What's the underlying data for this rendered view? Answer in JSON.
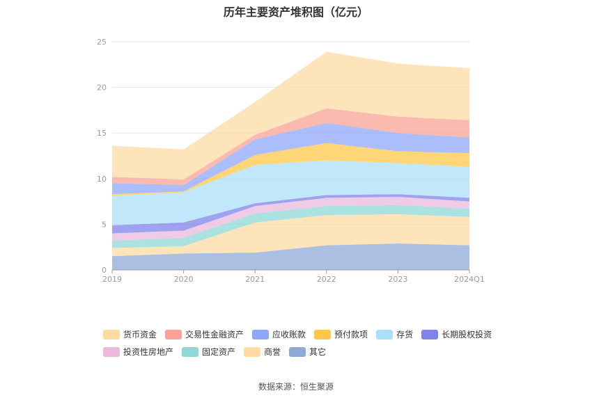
{
  "title": "历年主要资产堆积图（亿元）",
  "source": "数据来源：恒生聚源",
  "chart_data": {
    "type": "area",
    "stacked": true,
    "categories": [
      "2019",
      "2020",
      "2021",
      "2022",
      "2023",
      "2024Q1"
    ],
    "ylim": [
      0,
      25
    ],
    "yticks": [
      0,
      5,
      10,
      15,
      20,
      25
    ],
    "grid": true,
    "legend_position": "bottom",
    "series": [
      {
        "name": "其它",
        "color": "#8fa9d8",
        "values": [
          1.5,
          1.8,
          1.9,
          2.7,
          2.9,
          2.7
        ]
      },
      {
        "name": "商誉",
        "color": "#fddba3",
        "values": [
          0.9,
          0.8,
          3.3,
          3.3,
          3.2,
          3.1
        ]
      },
      {
        "name": "固定资产",
        "color": "#8ed8d8",
        "values": [
          0.8,
          0.9,
          1.0,
          1.0,
          1.0,
          0.9
        ]
      },
      {
        "name": "投资性房地产",
        "color": "#eab9dc",
        "values": [
          0.8,
          0.8,
          0.8,
          0.9,
          0.9,
          0.8
        ]
      },
      {
        "name": "长期股权投资",
        "color": "#7f83ea",
        "values": [
          0.9,
          0.9,
          0.3,
          0.3,
          0.3,
          0.4
        ]
      },
      {
        "name": "存货",
        "color": "#ace0f8",
        "values": [
          3.2,
          3.3,
          4.2,
          3.8,
          3.4,
          3.4
        ]
      },
      {
        "name": "预付款项",
        "color": "#fdc74a",
        "values": [
          0.2,
          0.1,
          1.1,
          1.9,
          1.3,
          1.5
        ]
      },
      {
        "name": "应收账款",
        "color": "#8fa7f8",
        "values": [
          1.2,
          0.7,
          1.7,
          2.2,
          2.0,
          1.7
        ]
      },
      {
        "name": "交易性金融资产",
        "color": "#f8a396",
        "values": [
          0.7,
          0.6,
          0.5,
          1.6,
          1.8,
          1.9
        ]
      },
      {
        "name": "货币资金",
        "color": "#fddba3",
        "values": [
          3.4,
          3.3,
          3.6,
          6.2,
          5.8,
          5.7
        ]
      }
    ]
  },
  "legend_rows": [
    [
      "货币资金",
      "交易性金融资产",
      "应收账款",
      "预付款项",
      "存货",
      "长期股权投资"
    ],
    [
      "投资性房地产",
      "固定资产",
      "商誉",
      "其它"
    ]
  ]
}
